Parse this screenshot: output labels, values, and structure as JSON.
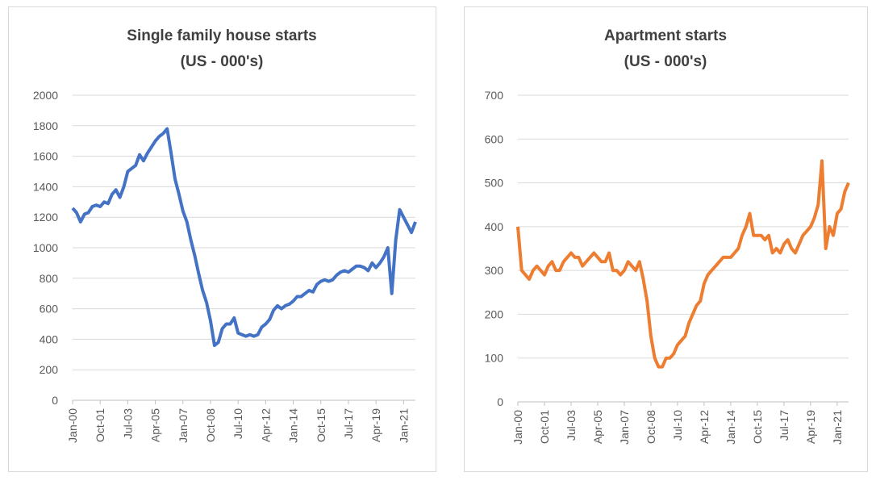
{
  "chart_data": [
    {
      "type": "line",
      "title": "Single family house starts",
      "subtitle": "(US - 000's)",
      "color": "#4472c4",
      "grid": true,
      "ylim": [
        0,
        2000
      ],
      "yticks": [
        0,
        200,
        400,
        600,
        800,
        1000,
        1200,
        1400,
        1600,
        1800,
        2000
      ],
      "categories": [
        "Jan-00",
        null,
        null,
        null,
        null,
        null,
        null,
        "Oct-01",
        null,
        null,
        null,
        null,
        null,
        null,
        "Jul-03",
        null,
        null,
        null,
        null,
        null,
        null,
        "Apr-05",
        null,
        null,
        null,
        null,
        null,
        null,
        "Jan-07",
        null,
        null,
        null,
        null,
        null,
        null,
        "Oct-08",
        null,
        null,
        null,
        null,
        null,
        null,
        "Jul-10",
        null,
        null,
        null,
        null,
        null,
        null,
        "Apr-12",
        null,
        null,
        null,
        null,
        null,
        null,
        "Jan-14",
        null,
        null,
        null,
        null,
        null,
        null,
        "Oct-15",
        null,
        null,
        null,
        null,
        null,
        null,
        "Jul-17",
        null,
        null,
        null,
        null,
        null,
        null,
        "Apr-19",
        null,
        null,
        null,
        null,
        null,
        null,
        "Jan-21",
        null,
        null,
        null
      ],
      "values": [
        1260,
        1230,
        1170,
        1220,
        1230,
        1270,
        1280,
        1270,
        1300,
        1290,
        1350,
        1380,
        1330,
        1400,
        1500,
        1520,
        1540,
        1610,
        1570,
        1620,
        1660,
        1700,
        1730,
        1750,
        1780,
        1620,
        1450,
        1350,
        1240,
        1170,
        1050,
        950,
        830,
        720,
        640,
        520,
        360,
        380,
        470,
        500,
        500,
        540,
        440,
        430,
        420,
        430,
        420,
        430,
        480,
        500,
        530,
        590,
        620,
        600,
        620,
        630,
        650,
        680,
        680,
        700,
        720,
        710,
        760,
        780,
        790,
        780,
        790,
        820,
        840,
        850,
        840,
        860,
        880,
        880,
        870,
        850,
        900,
        870,
        900,
        940,
        1000,
        700,
        1050,
        1250,
        1200,
        1150,
        1100,
        1170
      ]
    },
    {
      "type": "line",
      "title": "Apartment starts",
      "subtitle": "(US - 000's)",
      "color": "#ed7d31",
      "grid": true,
      "ylim": [
        0,
        700
      ],
      "yticks": [
        0,
        100,
        200,
        300,
        400,
        500,
        600,
        700
      ],
      "categories": [
        "Jan-00",
        null,
        null,
        null,
        null,
        null,
        null,
        "Oct-01",
        null,
        null,
        null,
        null,
        null,
        null,
        "Jul-03",
        null,
        null,
        null,
        null,
        null,
        null,
        "Apr-05",
        null,
        null,
        null,
        null,
        null,
        null,
        "Jan-07",
        null,
        null,
        null,
        null,
        null,
        null,
        "Oct-08",
        null,
        null,
        null,
        null,
        null,
        null,
        "Jul-10",
        null,
        null,
        null,
        null,
        null,
        null,
        "Apr-12",
        null,
        null,
        null,
        null,
        null,
        null,
        "Jan-14",
        null,
        null,
        null,
        null,
        null,
        null,
        "Oct-15",
        null,
        null,
        null,
        null,
        null,
        null,
        "Jul-17",
        null,
        null,
        null,
        null,
        null,
        null,
        "Apr-19",
        null,
        null,
        null,
        null,
        null,
        null,
        "Jan-21",
        null,
        null,
        null
      ],
      "values": [
        400,
        300,
        290,
        280,
        300,
        310,
        300,
        290,
        310,
        320,
        300,
        300,
        320,
        330,
        340,
        330,
        330,
        310,
        320,
        330,
        340,
        330,
        320,
        320,
        340,
        300,
        300,
        290,
        300,
        320,
        310,
        300,
        320,
        280,
        230,
        150,
        100,
        80,
        80,
        100,
        100,
        110,
        130,
        140,
        150,
        180,
        200,
        220,
        230,
        270,
        290,
        300,
        310,
        320,
        330,
        330,
        330,
        340,
        350,
        380,
        400,
        430,
        380,
        380,
        380,
        370,
        380,
        340,
        350,
        340,
        360,
        370,
        350,
        340,
        360,
        380,
        390,
        400,
        420,
        450,
        550,
        350,
        400,
        380,
        430,
        440,
        480,
        500
      ]
    }
  ]
}
